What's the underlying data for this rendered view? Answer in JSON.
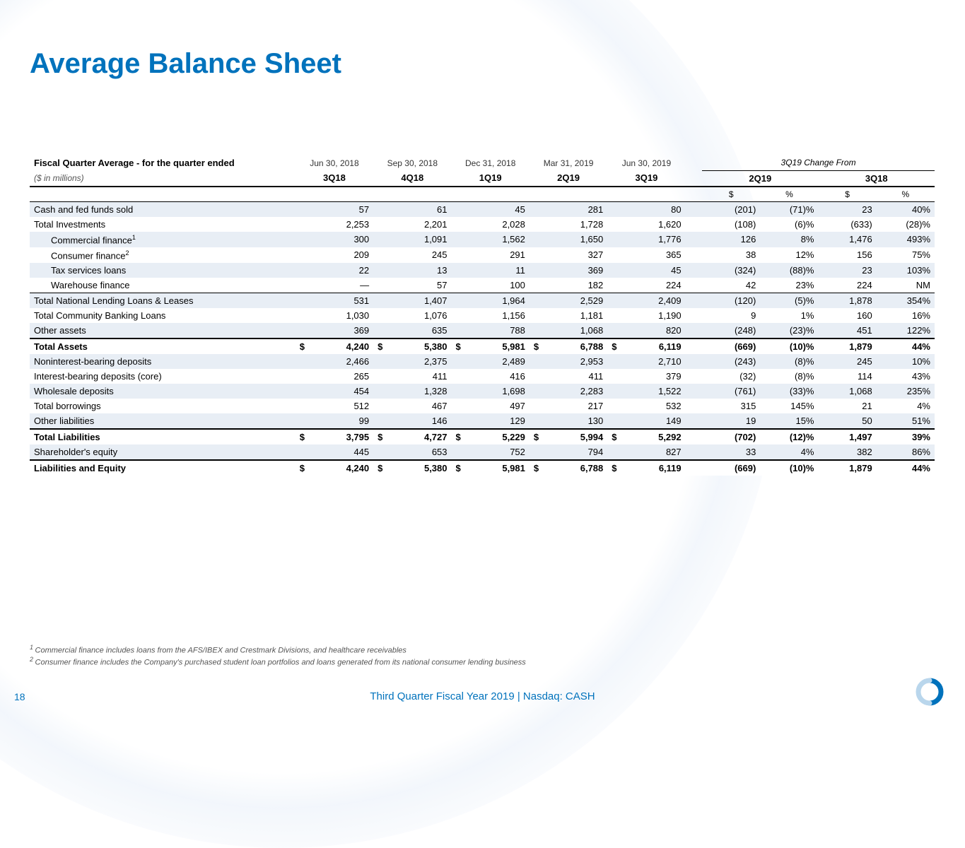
{
  "title": "Average Balance Sheet",
  "header": {
    "row_label": "Fiscal Quarter Average - for the quarter ended",
    "units": "($ in millions)",
    "dates": [
      "Jun 30, 2018",
      "Sep 30, 2018",
      "Dec 31, 2018",
      "Mar 31, 2019",
      "Jun 30, 2019"
    ],
    "quarters": [
      "3Q18",
      "4Q18",
      "1Q19",
      "2Q19",
      "3Q19"
    ],
    "change_title": "3Q19 Change From",
    "change_cols": [
      "2Q19",
      "3Q18"
    ],
    "sub_cols": [
      "$",
      "%",
      "$",
      "%"
    ]
  },
  "rows": [
    {
      "label": "Cash and fed funds sold",
      "indent": 0,
      "shade": true,
      "vals": [
        "57",
        "61",
        "45",
        "281",
        "80"
      ],
      "chg": [
        "(201)",
        "(71)%",
        "23",
        "40%"
      ]
    },
    {
      "label": "Total Investments",
      "indent": 0,
      "shade": false,
      "vals": [
        "2,253",
        "2,201",
        "2,028",
        "1,728",
        "1,620"
      ],
      "chg": [
        "(108)",
        "(6)%",
        "(633)",
        "(28)%"
      ]
    },
    {
      "label": "Commercial finance",
      "sup": "1",
      "indent": 1,
      "shade": true,
      "vals": [
        "300",
        "1,091",
        "1,562",
        "1,650",
        "1,776"
      ],
      "chg": [
        "126",
        "8%",
        "1,476",
        "493%"
      ]
    },
    {
      "label": "Consumer finance",
      "sup": "2",
      "indent": 1,
      "shade": false,
      "vals": [
        "209",
        "245",
        "291",
        "327",
        "365"
      ],
      "chg": [
        "38",
        "12%",
        "156",
        "75%"
      ]
    },
    {
      "label": "Tax services loans",
      "indent": 1,
      "shade": true,
      "vals": [
        "22",
        "13",
        "11",
        "369",
        "45"
      ],
      "chg": [
        "(324)",
        "(88)%",
        "23",
        "103%"
      ]
    },
    {
      "label": "Warehouse finance",
      "indent": 1,
      "shade": false,
      "vals": [
        "—",
        "57",
        "100",
        "182",
        "224"
      ],
      "chg": [
        "42",
        "23%",
        "224",
        "NM"
      ]
    },
    {
      "label": "Total National Lending Loans & Leases",
      "indent": 0,
      "shade": true,
      "vals": [
        "531",
        "1,407",
        "1,964",
        "2,529",
        "2,409"
      ],
      "chg": [
        "(120)",
        "(5)%",
        "1,878",
        "354%"
      ],
      "border_top": "thin"
    },
    {
      "label": "Total Community Banking Loans",
      "indent": 0,
      "shade": false,
      "vals": [
        "1,030",
        "1,076",
        "1,156",
        "1,181",
        "1,190"
      ],
      "chg": [
        "9",
        "1%",
        "160",
        "16%"
      ]
    },
    {
      "label": "Other assets",
      "indent": 0,
      "shade": true,
      "vals": [
        "369",
        "635",
        "788",
        "1,068",
        "820"
      ],
      "chg": [
        "(248)",
        "(23)%",
        "451",
        "122%"
      ]
    },
    {
      "label": "Total Assets",
      "indent": 0,
      "shade": false,
      "bold": true,
      "dollar": true,
      "vals": [
        "4,240",
        "5,380",
        "5,981",
        "6,788",
        "6,119"
      ],
      "chg": [
        "(669)",
        "(10)%",
        "1,879",
        "44%"
      ],
      "border_top": "thick"
    },
    {
      "label": "Noninterest-bearing deposits",
      "indent": 0,
      "shade": true,
      "vals": [
        "2,466",
        "2,375",
        "2,489",
        "2,953",
        "2,710"
      ],
      "chg": [
        "(243)",
        "(8)%",
        "245",
        "10%"
      ]
    },
    {
      "label": "Interest-bearing deposits (core)",
      "indent": 0,
      "shade": false,
      "vals": [
        "265",
        "411",
        "416",
        "411",
        "379"
      ],
      "chg": [
        "(32)",
        "(8)%",
        "114",
        "43%"
      ]
    },
    {
      "label": "Wholesale deposits",
      "indent": 0,
      "shade": true,
      "vals": [
        "454",
        "1,328",
        "1,698",
        "2,283",
        "1,522"
      ],
      "chg": [
        "(761)",
        "(33)%",
        "1,068",
        "235%"
      ]
    },
    {
      "label": "Total borrowings",
      "indent": 0,
      "shade": false,
      "vals": [
        "512",
        "467",
        "497",
        "217",
        "532"
      ],
      "chg": [
        "315",
        "145%",
        "21",
        "4%"
      ]
    },
    {
      "label": "Other liabilities",
      "indent": 0,
      "shade": true,
      "vals": [
        "99",
        "146",
        "129",
        "130",
        "149"
      ],
      "chg": [
        "19",
        "15%",
        "50",
        "51%"
      ]
    },
    {
      "label": "Total Liabilities",
      "indent": 0,
      "shade": false,
      "bold": true,
      "dollar": true,
      "vals": [
        "3,795",
        "4,727",
        "5,229",
        "5,994",
        "5,292"
      ],
      "chg": [
        "(702)",
        "(12)%",
        "1,497",
        "39%"
      ],
      "border_top": "thick"
    },
    {
      "label": "Shareholder's equity",
      "indent": 0,
      "shade": true,
      "vals": [
        "445",
        "653",
        "752",
        "794",
        "827"
      ],
      "chg": [
        "33",
        "4%",
        "382",
        "86%"
      ]
    },
    {
      "label": "Liabilities and Equity",
      "indent": 0,
      "shade": false,
      "bold": true,
      "dollar": true,
      "vals": [
        "4,240",
        "5,380",
        "5,981",
        "6,788",
        "6,119"
      ],
      "chg": [
        "(669)",
        "(10)%",
        "1,879",
        "44%"
      ],
      "border_top": "thick"
    }
  ],
  "footnotes": [
    "Commercial finance includes loans from the AFS/IBEX and Crestmark Divisions, and healthcare receivables",
    "Consumer finance includes the Company's purchased student loan portfolios and loans generated from its national consumer lending business"
  ],
  "footer": {
    "page": "18",
    "text": "Third Quarter Fiscal Year 2019 | Nasdaq: CASH"
  },
  "colors": {
    "brand": "#0072bc",
    "shade": "#e8eef5"
  }
}
